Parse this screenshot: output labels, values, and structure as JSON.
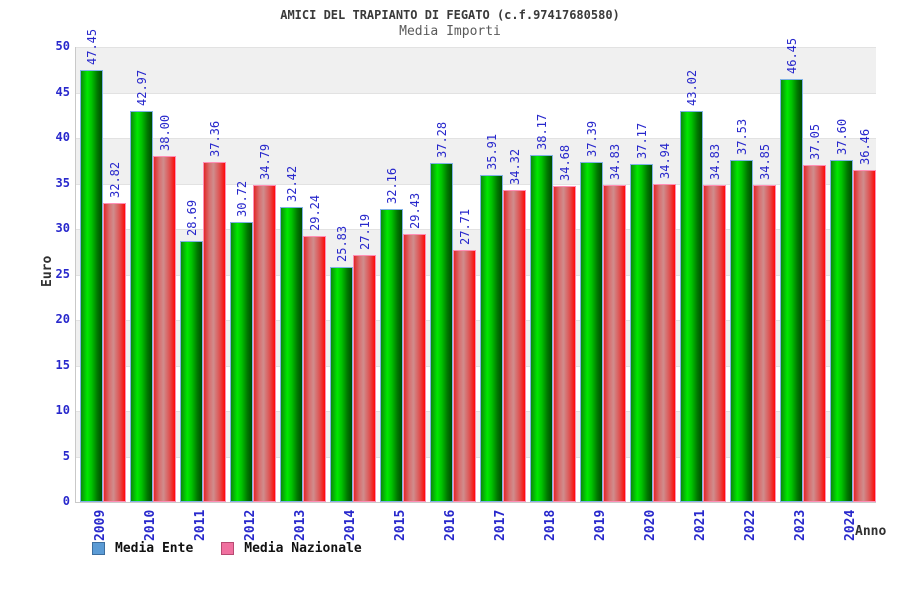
{
  "chart_data": {
    "type": "bar",
    "title": "AMICI DEL TRAPIANTO DI FEGATO (c.f.97417680580)",
    "subtitle": "Media Importi",
    "xlabel": "Anno",
    "ylabel": "Euro",
    "ylim": [
      0,
      50
    ],
    "ytick_step": 5,
    "grid": "horizontal-bands-alternating",
    "legend_position": "bottom-left",
    "categories": [
      "2009",
      "2010",
      "2011",
      "2012",
      "2013",
      "2014",
      "2015",
      "2016",
      "2017",
      "2018",
      "2019",
      "2020",
      "2021",
      "2022",
      "2023",
      "2024"
    ],
    "series": [
      {
        "name": "Media Ente",
        "bar_color": "#00cc00",
        "legend_swatch_color": "#5b9bd5",
        "legend_swatch_border": "#3c6e9f",
        "values": [
          "47.45",
          "42.97",
          "28.69",
          "30.72",
          "32.42",
          "25.83",
          "32.16",
          "37.28",
          "35.91",
          "38.17",
          "37.39",
          "37.17",
          "43.02",
          "37.53",
          "46.45",
          "37.60"
        ]
      },
      {
        "name": "Media Nazionale",
        "bar_color": "#ee2222",
        "legend_swatch_color": "#f0709f",
        "legend_swatch_border": "#b84a72",
        "values": [
          "32.82",
          "38.00",
          "37.36",
          "34.79",
          "29.24",
          "27.19",
          "29.43",
          "27.71",
          "34.32",
          "34.68",
          "34.83",
          "34.94",
          "34.83",
          "34.85",
          "37.05",
          "36.46"
        ]
      }
    ],
    "colors": {
      "value_label": "#2828cc",
      "tick_label": "#2828cc",
      "band_gray": "#f0f0f0",
      "title_text": "#3a3a3a"
    }
  }
}
